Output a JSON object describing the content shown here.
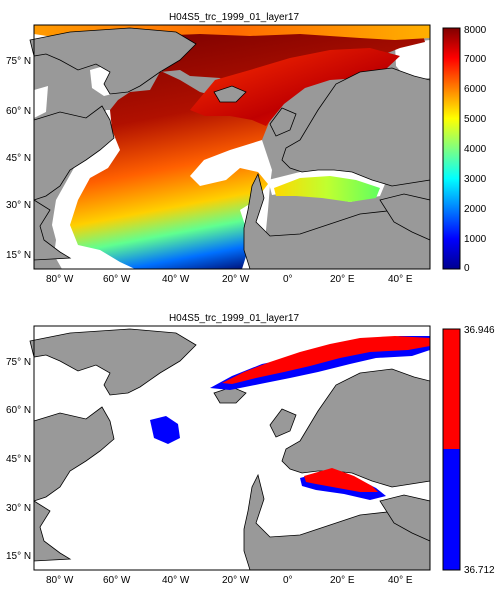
{
  "panel_top": {
    "title": "H04S5_trc_1999_01_layer17",
    "lat_ticks": [
      "75° N",
      "60° N",
      "45° N",
      "30° N",
      "15° N"
    ],
    "lon_ticks": [
      "80° W",
      "60° W",
      "40° W",
      "20° W",
      "0°",
      "20° E",
      "40° E"
    ],
    "colorbar": {
      "ticks": [
        "8000",
        "7000",
        "6000",
        "5000",
        "4000",
        "3000",
        "2000",
        "1000",
        "0"
      ],
      "min": 0,
      "max": 8000,
      "colormap": "jet"
    }
  },
  "panel_bottom": {
    "title": "H04S5_trc_1999_01_layer17",
    "lat_ticks": [
      "75° N",
      "60° N",
      "45° N",
      "30° N",
      "15° N"
    ],
    "lon_ticks": [
      "80° W",
      "60° W",
      "40° W",
      "20° W",
      "0°",
      "20° E",
      "40° E"
    ],
    "colorbar": {
      "max_label": "36.946",
      "min_label": "36.712",
      "colors": [
        "#ff0000",
        "#0000ff"
      ]
    }
  },
  "colors": {
    "land": "#999999",
    "ocean_nodata": "#ffffff",
    "coast": "#000000"
  }
}
